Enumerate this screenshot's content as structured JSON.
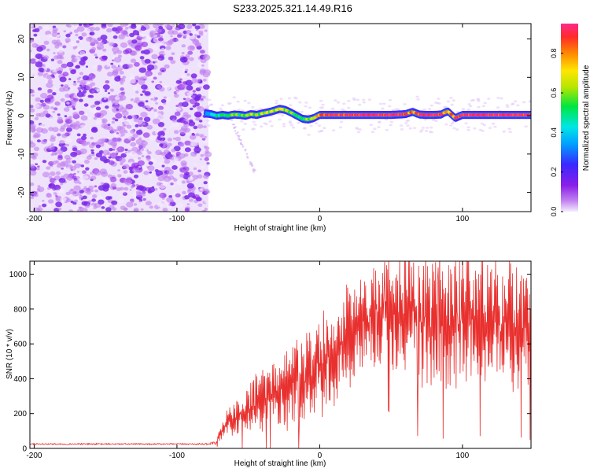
{
  "figure": {
    "title": "S233.2025.321.14.49.R16"
  },
  "colors": {
    "snr_line": "#e8302e",
    "track": "#e8302e",
    "noise": "#7a28e8",
    "colormap": [
      "#f5ecff",
      "#c080f0",
      "#8a1fe8",
      "#3a28ff",
      "#00a0ff",
      "#00e6e6",
      "#00e640",
      "#b4e600",
      "#ffe600",
      "#ff8a00",
      "#ff2a2a",
      "#ff2a8a"
    ]
  },
  "chart_data": [
    {
      "type": "heatmap",
      "title": "",
      "xlabel": "Height of straight line (km)",
      "ylabel": "Frequency (Hz)",
      "xlim": [
        -203,
        148
      ],
      "ylim": [
        -25,
        24
      ],
      "xticks": [
        -200,
        -100,
        0,
        100
      ],
      "yticks": [
        -20,
        -10,
        0,
        10,
        20
      ],
      "xtick_labels": [
        "-200",
        "-100",
        "0",
        "100"
      ],
      "ytick_labels": [
        "-20",
        "-10",
        "0",
        "10",
        "20"
      ],
      "colorbar": {
        "label": "Normalized spectral amplitude",
        "range": [
          0,
          0.95
        ],
        "ticks": [
          0,
          0.2,
          0.4,
          0.6,
          0.8
        ],
        "tick_labels": [
          "0.0",
          "0.2",
          "0.4",
          "0.6",
          "0.8"
        ]
      },
      "regions": [
        {
          "name": "noise",
          "x_range": [
            -203,
            -78
          ],
          "freq_range": [
            -25,
            24
          ],
          "amplitude": [
            0.02,
            0.15
          ]
        },
        {
          "name": "tail",
          "x_range": [
            -62,
            -45
          ],
          "freq_range": [
            -15,
            -1
          ],
          "amplitude": [
            0.01,
            0.05
          ]
        }
      ],
      "track": {
        "x": [
          -80,
          -76,
          -72,
          -68,
          -64,
          -60,
          -56,
          -52,
          -48,
          -44,
          -40,
          -36,
          -32,
          -28,
          -24,
          -20,
          -16,
          -12,
          -8,
          -4,
          0,
          10,
          20,
          30,
          40,
          50,
          60,
          65,
          70,
          75,
          80,
          85,
          88,
          90,
          92,
          95,
          100,
          110,
          120,
          130,
          140,
          148
        ],
        "freq": [
          0.6,
          0.4,
          0.0,
          0.2,
          0.0,
          0.3,
          0.2,
          0.0,
          0.4,
          0.2,
          0.6,
          0.9,
          1.3,
          1.8,
          1.5,
          0.8,
          0.0,
          -0.8,
          -1.0,
          -0.6,
          0.2,
          0.2,
          0.2,
          0.2,
          0.2,
          0.2,
          0.4,
          1.0,
          0.3,
          0.2,
          0.2,
          0.3,
          0.9,
          1.1,
          0.4,
          -0.6,
          0.2,
          0.2,
          0.2,
          0.2,
          0.2,
          0.2
        ],
        "amplitude": [
          0.3,
          0.4,
          0.45,
          0.5,
          0.5,
          0.55,
          0.5,
          0.55,
          0.6,
          0.55,
          0.6,
          0.6,
          0.6,
          0.65,
          0.6,
          0.55,
          0.5,
          0.5,
          0.55,
          0.6,
          0.8,
          0.85,
          0.85,
          0.9,
          0.9,
          0.9,
          0.85,
          0.75,
          0.85,
          0.9,
          0.9,
          0.85,
          0.75,
          0.7,
          0.75,
          0.8,
          0.9,
          0.9,
          0.9,
          0.9,
          0.9,
          0.9
        ]
      }
    },
    {
      "type": "line",
      "title": "",
      "xlabel": "Height of straight line (km)",
      "ylabel": "SNR (10 * v/v)",
      "xlim": [
        -203,
        148
      ],
      "ylim": [
        0,
        1075
      ],
      "xticks": [
        -200,
        -100,
        0,
        100
      ],
      "yticks": [
        0,
        200,
        400,
        600,
        800,
        1000
      ],
      "xtick_labels": [
        "-200",
        "-100",
        "0",
        "100"
      ],
      "ytick_labels": [
        "0",
        "200",
        "400",
        "600",
        "800",
        "1000"
      ],
      "series": [
        {
          "name": "SNR",
          "x": [
            -203,
            -150,
            -100,
            -80,
            -72,
            -70,
            -66,
            -60,
            -50,
            -40,
            -30,
            -20,
            -10,
            0,
            10,
            20,
            30,
            40,
            50,
            60,
            70,
            80,
            90,
            100,
            110,
            120,
            130,
            140,
            148
          ],
          "y": [
            25,
            25,
            25,
            25,
            30,
            80,
            140,
            170,
            220,
            280,
            320,
            360,
            390,
            480,
            560,
            660,
            740,
            760,
            770,
            780,
            760,
            760,
            760,
            740,
            720,
            720,
            700,
            680,
            620
          ],
          "spread": [
            8,
            8,
            8,
            10,
            20,
            40,
            60,
            80,
            110,
            130,
            160,
            180,
            200,
            240,
            240,
            220,
            200,
            220,
            260,
            280,
            320,
            320,
            320,
            300,
            300,
            280,
            280,
            280,
            260
          ],
          "spikes": [
            {
              "x": 79,
              "y": 1060
            },
            {
              "x": 83,
              "y": 1040
            },
            {
              "x": 98,
              "y": 1075
            },
            {
              "x": 65,
              "y": 930
            },
            {
              "x": 45,
              "y": 870
            }
          ]
        }
      ]
    }
  ]
}
